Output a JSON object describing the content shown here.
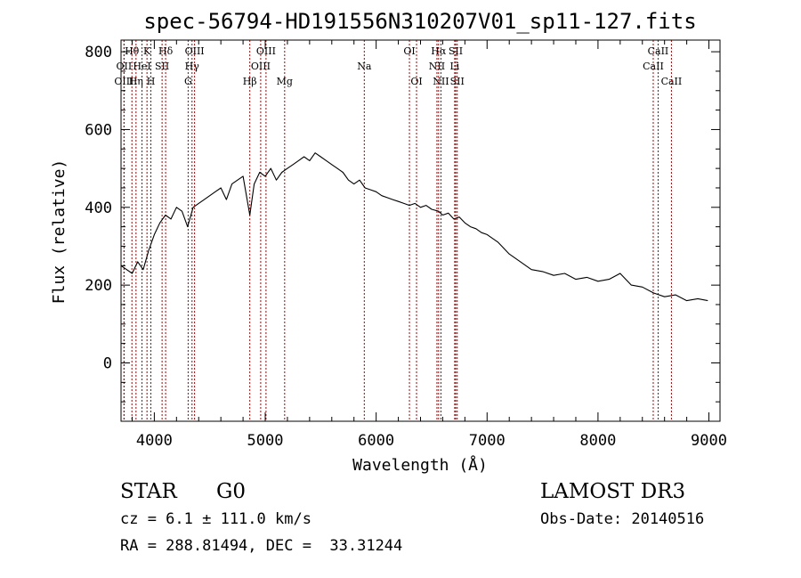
{
  "chart_data": {
    "type": "line",
    "title": "spec-56794-HD191556N310207V01_sp11-127.fits",
    "xlabel": "Wavelength (Å)",
    "ylabel": "Flux (relative)",
    "xlim": [
      3700,
      9100
    ],
    "ylim": [
      -150,
      830
    ],
    "x_ticks": [
      4000,
      5000,
      6000,
      7000,
      8000,
      9000
    ],
    "y_ticks": [
      0,
      200,
      400,
      600,
      800
    ],
    "grid": false,
    "series": [
      {
        "name": "flux",
        "x": [
          3700,
          3800,
          3850,
          3900,
          3950,
          4000,
          4050,
          4100,
          4150,
          4200,
          4250,
          4300,
          4350,
          4400,
          4450,
          4500,
          4550,
          4600,
          4650,
          4700,
          4750,
          4800,
          4861,
          4900,
          4950,
          5000,
          5050,
          5100,
          5150,
          5200,
          5250,
          5300,
          5350,
          5400,
          5450,
          5500,
          5550,
          5600,
          5650,
          5700,
          5750,
          5800,
          5850,
          5900,
          5950,
          6000,
          6050,
          6100,
          6150,
          6200,
          6250,
          6300,
          6350,
          6400,
          6450,
          6500,
          6563,
          6600,
          6650,
          6700,
          6750,
          6800,
          6850,
          6900,
          6950,
          7000,
          7100,
          7200,
          7300,
          7400,
          7500,
          7600,
          7700,
          7800,
          7900,
          8000,
          8100,
          8200,
          8300,
          8400,
          8500,
          8600,
          8700,
          8800,
          8900,
          8990
        ],
        "y": [
          250,
          230,
          260,
          240,
          290,
          330,
          360,
          380,
          370,
          400,
          390,
          350,
          400,
          410,
          420,
          430,
          440,
          450,
          420,
          460,
          470,
          480,
          380,
          460,
          490,
          480,
          500,
          470,
          490,
          500,
          510,
          520,
          530,
          520,
          540,
          530,
          520,
          510,
          500,
          490,
          470,
          460,
          470,
          450,
          445,
          440,
          430,
          425,
          420,
          415,
          410,
          405,
          410,
          400,
          405,
          395,
          390,
          380,
          385,
          370,
          375,
          360,
          350,
          345,
          335,
          330,
          310,
          280,
          260,
          240,
          235,
          225,
          230,
          215,
          220,
          210,
          215,
          230,
          200,
          195,
          180,
          170,
          175,
          160,
          165,
          160
        ]
      }
    ],
    "lines": [
      {
        "label": "Hθ",
        "x": 3798,
        "row": 1
      },
      {
        "label": "OII",
        "x": 3727,
        "row": 2
      },
      {
        "label": "OIII",
        "x": 3727,
        "row": 3
      },
      {
        "label": "Hη",
        "x": 3835,
        "row": 3
      },
      {
        "label": "HeI",
        "x": 3889,
        "row": 2
      },
      {
        "label": "K",
        "x": 3934,
        "row": 1
      },
      {
        "label": "H",
        "x": 3969,
        "row": 3
      },
      {
        "label": "SII",
        "x": 4070,
        "row": 2
      },
      {
        "label": "Hδ",
        "x": 4102,
        "row": 1
      },
      {
        "label": "OIII",
        "x": 4363,
        "row": 1
      },
      {
        "label": "Hγ",
        "x": 4340,
        "row": 2
      },
      {
        "label": "G",
        "x": 4305,
        "row": 3
      },
      {
        "label": "Hβ",
        "x": 4861,
        "row": 3
      },
      {
        "label": "OIII",
        "x": 5007,
        "row": 1
      },
      {
        "label": "OIII",
        "x": 4959,
        "row": 2
      },
      {
        "label": "Mg",
        "x": 5175,
        "row": 3
      },
      {
        "label": "Na",
        "x": 5893,
        "row": 2
      },
      {
        "label": "OI",
        "x": 6300,
        "row": 1
      },
      {
        "label": "OI",
        "x": 6364,
        "row": 3
      },
      {
        "label": "Hα",
        "x": 6563,
        "row": 1
      },
      {
        "label": "NII",
        "x": 6548,
        "row": 2
      },
      {
        "label": "NII",
        "x": 6584,
        "row": 3
      },
      {
        "label": "SII",
        "x": 6717,
        "row": 1
      },
      {
        "label": "Li",
        "x": 6708,
        "row": 2
      },
      {
        "label": "SII",
        "x": 6731,
        "row": 3
      },
      {
        "label": "CaII",
        "x": 8542,
        "row": 1
      },
      {
        "label": "CaII",
        "x": 8498,
        "row": 2
      },
      {
        "label": "CaII",
        "x": 8662,
        "row": 3
      }
    ]
  },
  "info": {
    "object_class": "STAR",
    "subclass": "G0",
    "survey": "LAMOST DR3",
    "redshift": "cz = 6.1 ± 111.0 km/s",
    "obs_date": "Obs-Date: 20140516",
    "coords": "RA = 288.81494, DEC =  33.31244"
  }
}
